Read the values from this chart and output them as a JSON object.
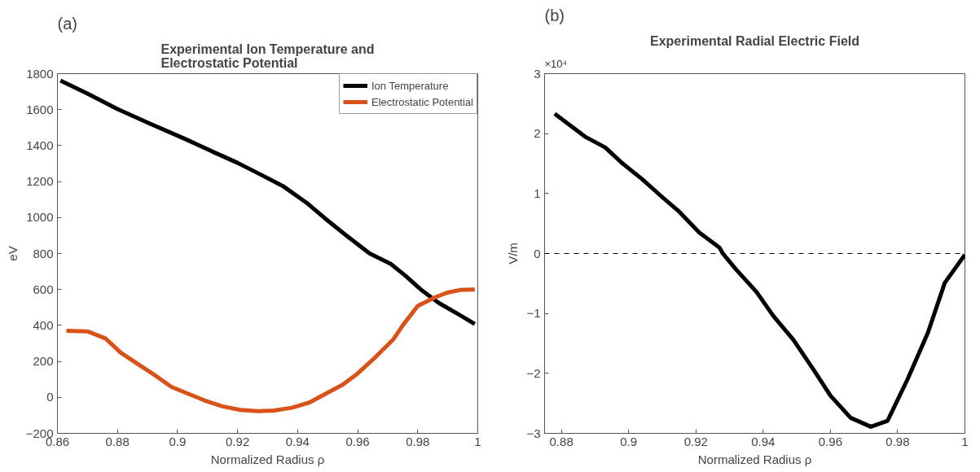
{
  "chart_data": [
    {
      "type": "line",
      "title": "Experimental Ion Temperature and\nElectrostatic Potential",
      "xlabel": "Normalized Radius ρ",
      "ylabel": "eV",
      "xlim": [
        0.86,
        1
      ],
      "xticks": [
        0.86,
        0.88,
        0.9,
        0.92,
        0.94,
        0.96,
        0.98,
        1
      ],
      "ylim": [
        -200,
        1800
      ],
      "yticks": [
        -200,
        0,
        200,
        400,
        600,
        800,
        1000,
        1200,
        1400,
        1600,
        1800
      ],
      "grid": false,
      "legend": "top right",
      "line_style": "solid",
      "annotations": [
        "(a)"
      ],
      "series": [
        {
          "name": "Ion Temperature",
          "color": "#000000",
          "x": [
            0.861,
            0.87,
            0.88,
            0.891,
            0.902,
            0.912,
            0.92,
            0.928,
            0.935,
            0.943,
            0.949,
            0.956,
            0.964,
            0.971,
            0.976,
            0.981,
            0.987,
            0.994,
            0.999
          ],
          "values": [
            1762,
            1689,
            1603,
            1521,
            1441,
            1364,
            1304,
            1236,
            1176,
            1082,
            997,
            903,
            800,
            742,
            675,
            600,
            525,
            458,
            408
          ]
        },
        {
          "name": "Electrostatic Potential",
          "color": "#d95319",
          "x": [
            0.863,
            0.87,
            0.876,
            0.881,
            0.887,
            0.893,
            0.898,
            0.904,
            0.909,
            0.915,
            0.921,
            0.927,
            0.932,
            0.938,
            0.944,
            0.949,
            0.955,
            0.96,
            0.966,
            0.972,
            0.975,
            0.98,
            0.986,
            0.99,
            0.994,
            0.999
          ],
          "values": [
            370,
            367,
            328,
            250,
            183,
            117,
            58,
            17,
            -17,
            -50,
            -70,
            -77,
            -73,
            -58,
            -28,
            17,
            70,
            133,
            225,
            325,
            400,
            508,
            558,
            583,
            597,
            600
          ]
        }
      ]
    },
    {
      "type": "line",
      "title": "Experimental Radial Electric Field",
      "xlabel": "Normalized Radius ρ",
      "ylabel": "V/m",
      "xlim": [
        0.875,
        1
      ],
      "xticks": [
        0.88,
        0.9,
        0.92,
        0.94,
        0.96,
        0.98,
        1
      ],
      "ylim": [
        -3,
        3
      ],
      "yticks": [
        -3,
        -2,
        -1,
        0,
        1,
        2,
        3
      ],
      "grid": false,
      "line_style": "solid",
      "annotations": [
        "(b)",
        "×10⁴"
      ],
      "ref_lines": [
        {
          "axis": "y",
          "value": 0,
          "color": "#000000",
          "line_style": "dashed"
        }
      ],
      "series": [
        {
          "color": "#000000",
          "x": [
            0.878,
            0.887,
            0.893,
            0.898,
            0.904,
            0.91,
            0.915,
            0.921,
            0.927,
            0.928,
            0.932,
            0.938,
            0.943,
            0.949,
            0.955,
            0.96,
            0.966,
            0.972,
            0.977,
            0.983,
            0.989,
            0.994,
            1.0
          ],
          "values": [
            2.33,
            1.95,
            1.77,
            1.51,
            1.24,
            0.94,
            0.7,
            0.35,
            0.1,
            0,
            -0.27,
            -0.64,
            -1.04,
            -1.44,
            -1.94,
            -2.37,
            -2.74,
            -2.89,
            -2.79,
            -2.09,
            -1.32,
            -0.49,
            -0.02
          ]
        }
      ]
    }
  ]
}
